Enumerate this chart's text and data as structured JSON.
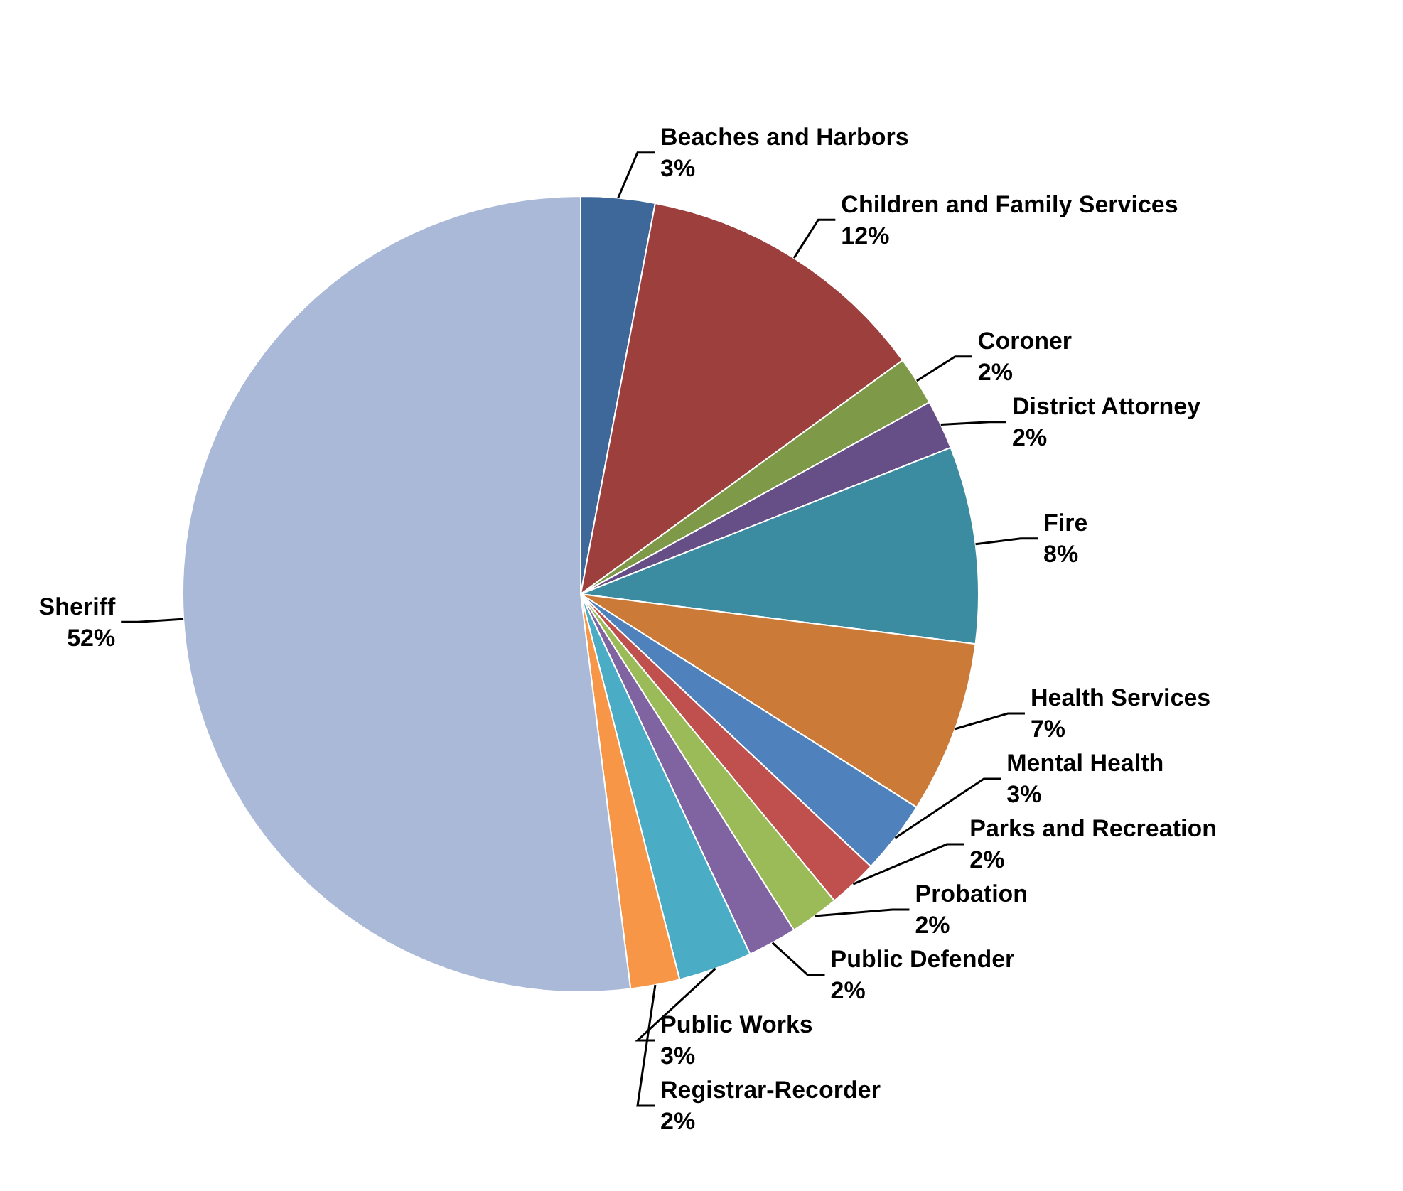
{
  "chart_data": {
    "type": "pie",
    "categories": [
      "Beaches and Harbors",
      "Children and Family Services",
      "Coroner",
      "District Attorney",
      "Fire",
      "Health Services",
      "Mental Health",
      "Parks and Recreation",
      "Probation",
      "Public Defender",
      "Public Works",
      "Registrar-Recorder",
      "Sheriff"
    ],
    "values": [
      3,
      12,
      2,
      2,
      8,
      7,
      3,
      2,
      2,
      2,
      3,
      2,
      52
    ],
    "value_labels": [
      "3%",
      "12%",
      "2%",
      "2%",
      "8%",
      "7%",
      "3%",
      "2%",
      "2%",
      "2%",
      "3%",
      "2%",
      "52%"
    ],
    "colors": [
      "#3e6899",
      "#9c3f3d",
      "#7e9a48",
      "#664f86",
      "#3b8ba1",
      "#cc7a38",
      "#4f81bd",
      "#c0504d",
      "#9bbb59",
      "#8064a2",
      "#4bacc6",
      "#f79646",
      "#aab9d8"
    ],
    "legend": false
  }
}
